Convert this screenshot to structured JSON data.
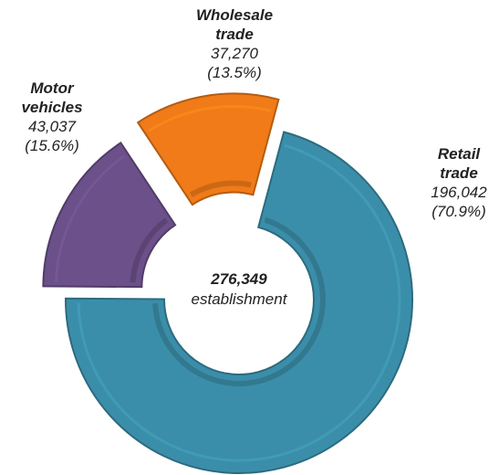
{
  "chart_data": {
    "type": "donut",
    "categories": [
      "Retail trade",
      "Motor vehicles",
      "Wholesale trade"
    ],
    "values": [
      196042,
      43037,
      37270
    ],
    "value_labels": [
      "196,042",
      "43,037",
      "37,270"
    ],
    "percentages": [
      70.9,
      15.6,
      13.5
    ],
    "percentage_labels": [
      "(70.9%)",
      "(15.6%)",
      "(13.5%)"
    ],
    "colors": [
      "#3b8ea9",
      "#6b5089",
      "#f07b18"
    ],
    "total": 276349,
    "total_label": "276,349",
    "total_caption": "establishment"
  }
}
